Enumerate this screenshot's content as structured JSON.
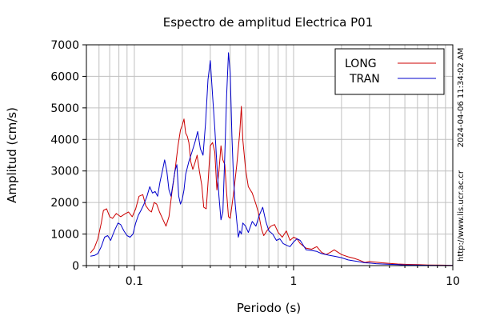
{
  "chart_data": {
    "type": "line",
    "title": "Espectro de amplitud Electrica P01",
    "xlabel": "Periodo (s)",
    "ylabel": "Amplitud (cm/s)",
    "xscale": "log",
    "xlim": [
      0.05,
      10
    ],
    "ylim": [
      0,
      7000
    ],
    "xticks": [
      {
        "value": 0.1,
        "label": "0.1"
      },
      {
        "value": 1,
        "label": "1"
      },
      {
        "value": 10,
        "label": "10"
      }
    ],
    "yticks": [
      {
        "value": 0,
        "label": "0"
      },
      {
        "value": 1000,
        "label": "1000"
      },
      {
        "value": 2000,
        "label": "2000"
      },
      {
        "value": 3000,
        "label": "3000"
      },
      {
        "value": 4000,
        "label": "4000"
      },
      {
        "value": 5000,
        "label": "5000"
      },
      {
        "value": 6000,
        "label": "6000"
      },
      {
        "value": 7000,
        "label": "7000"
      }
    ],
    "grid": true,
    "legend_position": "top-right",
    "side_annotations": [
      "2024-04-06 11:34:02 AM",
      "http://www.lis.ucr.ac.cr"
    ],
    "series": [
      {
        "name": "LONG",
        "color": "#cc0000",
        "x": [
          0.053,
          0.056,
          0.059,
          0.062,
          0.064,
          0.067,
          0.07,
          0.073,
          0.077,
          0.082,
          0.088,
          0.092,
          0.097,
          0.102,
          0.107,
          0.113,
          0.118,
          0.124,
          0.128,
          0.133,
          0.138,
          0.144,
          0.15,
          0.158,
          0.165,
          0.172,
          0.18,
          0.188,
          0.195,
          0.2,
          0.205,
          0.21,
          0.215,
          0.22,
          0.226,
          0.233,
          0.24,
          0.248,
          0.256,
          0.265,
          0.273,
          0.283,
          0.292,
          0.3,
          0.31,
          0.32,
          0.33,
          0.34,
          0.35,
          0.36,
          0.37,
          0.38,
          0.39,
          0.4,
          0.41,
          0.42,
          0.44,
          0.46,
          0.47,
          0.48,
          0.5,
          0.52,
          0.55,
          0.58,
          0.6,
          0.63,
          0.65,
          0.68,
          0.72,
          0.76,
          0.8,
          0.85,
          0.9,
          0.95,
          1.0,
          1.05,
          1.1,
          1.2,
          1.3,
          1.4,
          1.5,
          1.6,
          1.7,
          1.8,
          2.0,
          2.2,
          2.4,
          2.6,
          2.8,
          3.0,
          3.3,
          3.6,
          4.0,
          4.5,
          5.0,
          6.0,
          7.0,
          8.5,
          10.0
        ],
        "y": [
          400,
          550,
          850,
          1350,
          1750,
          1800,
          1550,
          1500,
          1650,
          1550,
          1650,
          1700,
          1550,
          1800,
          2200,
          2250,
          1900,
          1750,
          1700,
          2000,
          1950,
          1700,
          1500,
          1250,
          1550,
          2300,
          3000,
          3800,
          4300,
          4450,
          4650,
          4200,
          4100,
          3900,
          3300,
          3050,
          3250,
          3500,
          3000,
          2550,
          1850,
          1800,
          2800,
          3800,
          3900,
          3600,
          2400,
          3000,
          3800,
          3350,
          3200,
          2300,
          1550,
          1500,
          1900,
          2300,
          3200,
          4250,
          5050,
          4000,
          3050,
          2500,
          2300,
          1950,
          1700,
          1150,
          950,
          1100,
          1250,
          1300,
          1050,
          900,
          1100,
          800,
          900,
          850,
          700,
          550,
          520,
          600,
          420,
          350,
          420,
          500,
          350,
          280,
          230,
          170,
          100,
          130,
          110,
          90,
          70,
          50,
          40,
          30,
          20,
          15,
          10
        ]
      },
      {
        "name": "TRAN",
        "color": "#0000cc",
        "x": [
          0.053,
          0.056,
          0.059,
          0.062,
          0.065,
          0.068,
          0.071,
          0.075,
          0.079,
          0.082,
          0.086,
          0.09,
          0.094,
          0.098,
          0.102,
          0.106,
          0.11,
          0.115,
          0.12,
          0.125,
          0.13,
          0.135,
          0.14,
          0.145,
          0.15,
          0.155,
          0.16,
          0.165,
          0.17,
          0.175,
          0.18,
          0.185,
          0.19,
          0.195,
          0.2,
          0.205,
          0.21,
          0.22,
          0.23,
          0.24,
          0.25,
          0.26,
          0.27,
          0.28,
          0.29,
          0.3,
          0.31,
          0.32,
          0.33,
          0.34,
          0.35,
          0.36,
          0.37,
          0.38,
          0.39,
          0.4,
          0.41,
          0.42,
          0.43,
          0.44,
          0.45,
          0.46,
          0.47,
          0.48,
          0.5,
          0.52,
          0.55,
          0.58,
          0.61,
          0.64,
          0.67,
          0.7,
          0.74,
          0.78,
          0.82,
          0.86,
          0.9,
          0.95,
          1.0,
          1.05,
          1.1,
          1.2,
          1.3,
          1.4,
          1.5,
          1.6,
          1.7,
          1.8,
          2.0,
          2.2,
          2.4,
          2.6,
          2.8,
          3.0,
          3.3,
          3.6,
          4.0,
          4.5,
          5.0,
          6.0,
          7.0,
          8.5,
          10.0
        ],
        "y": [
          300,
          320,
          380,
          600,
          900,
          950,
          800,
          1100,
          1350,
          1300,
          1100,
          950,
          900,
          1000,
          1350,
          1600,
          1750,
          1950,
          2200,
          2500,
          2300,
          2350,
          2200,
          2650,
          3000,
          3350,
          3000,
          2400,
          2200,
          2600,
          3000,
          3200,
          2200,
          1950,
          2100,
          2400,
          2900,
          3300,
          3600,
          3900,
          4250,
          3700,
          3500,
          4500,
          5900,
          6500,
          5400,
          4350,
          3200,
          2200,
          1450,
          1700,
          3500,
          5400,
          6750,
          6100,
          4100,
          2700,
          1950,
          1400,
          900,
          1100,
          1000,
          1350,
          1250,
          1050,
          1400,
          1250,
          1600,
          1850,
          1400,
          1100,
          1000,
          800,
          850,
          700,
          650,
          600,
          750,
          850,
          800,
          500,
          480,
          450,
          380,
          350,
          320,
          300,
          250,
          180,
          150,
          120,
          90,
          80,
          60,
          50,
          40,
          30,
          20,
          15,
          10,
          8,
          5
        ]
      }
    ]
  }
}
